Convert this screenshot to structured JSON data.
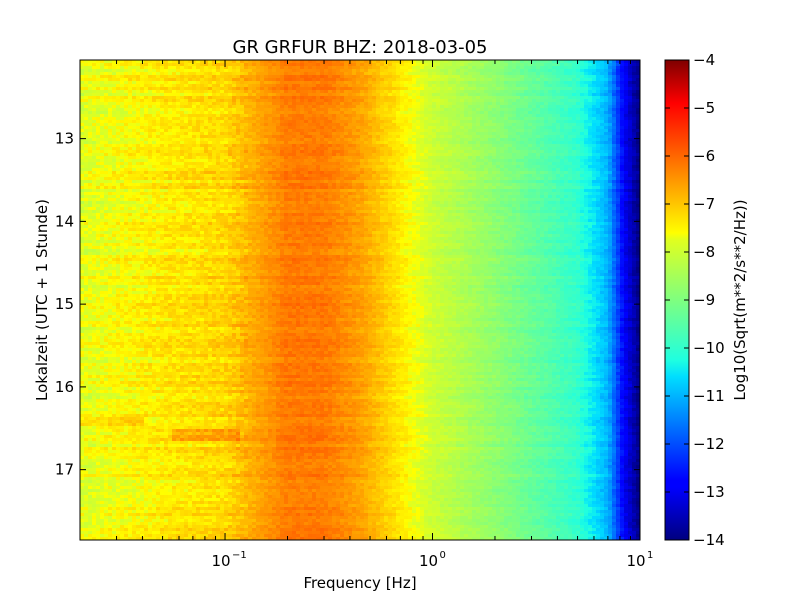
{
  "chart_data": {
    "type": "heatmap",
    "title": "GR GRFUR BHZ: 2018-03-05",
    "xlabel": "Frequency [Hz]",
    "ylabel": "Lokalzeit (UTC + 1 Stunde)",
    "x_scale": "log",
    "xlim": [
      0.02,
      10
    ],
    "x_ticks": [
      {
        "value": 0.1,
        "base": "10",
        "exp": "−1"
      },
      {
        "value": 1,
        "base": "10",
        "exp": "0"
      },
      {
        "value": 10,
        "base": "10",
        "exp": "1"
      }
    ],
    "ylim": [
      12.05,
      17.85
    ],
    "y_inverted": true,
    "y_ticks": [
      "13",
      "14",
      "15",
      "16",
      "17"
    ],
    "colorbar": {
      "label": "Log10(Sqrt(m**2/s**2/Hz))",
      "colormap": "jet",
      "range": [
        -14,
        -4
      ],
      "ticks": [
        "−4",
        "−5",
        "−6",
        "−7",
        "−8",
        "−9",
        "−10",
        "−11",
        "−12",
        "−13",
        "−14"
      ]
    },
    "spectrum_profile": {
      "frequency_hz": [
        0.02,
        0.05,
        0.1,
        0.13,
        0.2,
        0.3,
        0.45,
        0.7,
        1.0,
        2.0,
        3.0,
        5.0,
        7.0,
        8.5,
        10.0
      ],
      "log10_amplitude": [
        -7.8,
        -7.4,
        -7.2,
        -6.8,
        -6.2,
        -6.2,
        -6.6,
        -7.4,
        -8.0,
        -8.8,
        -9.3,
        -10.0,
        -11.0,
        -13.0,
        -14.0
      ]
    }
  }
}
